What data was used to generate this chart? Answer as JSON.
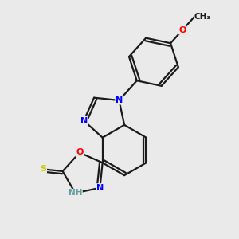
{
  "bg_color": "#eaeaea",
  "bond_color": "#1a1a1a",
  "bond_width": 1.6,
  "atom_colors": {
    "N": "#0000ff",
    "O": "#ff0000",
    "S": "#cccc00",
    "H": "#5f9ea0",
    "C": "#1a1a1a"
  },
  "figsize": [
    3.0,
    3.0
  ],
  "dpi": 100
}
